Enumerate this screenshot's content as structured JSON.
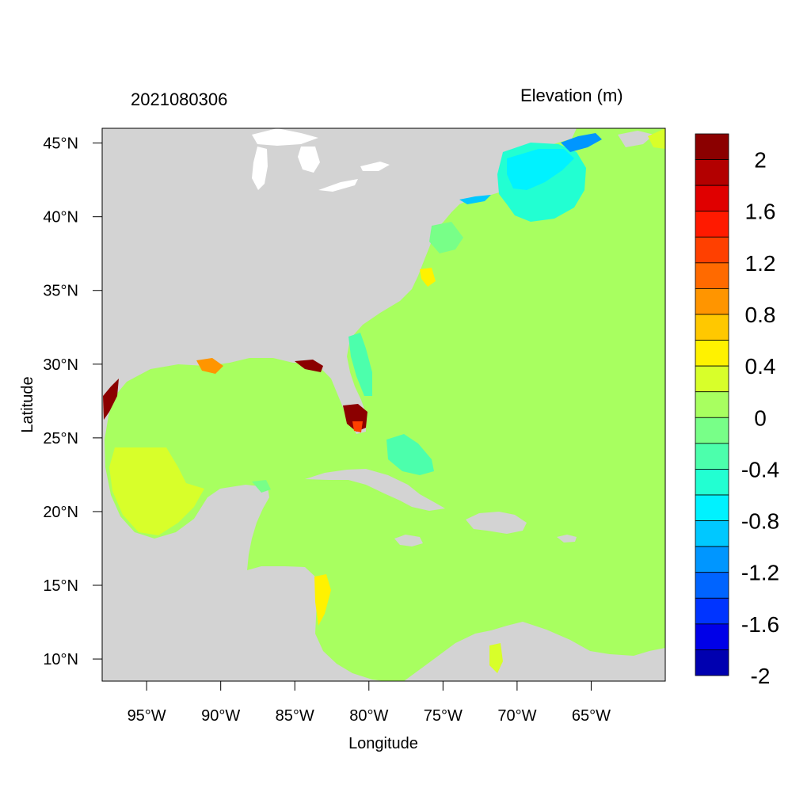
{
  "left_title": "2021080306",
  "right_title": "Elevation (m)",
  "xlabel": "Longitude",
  "ylabel": "Latitude",
  "x_ticks": [
    "95°W",
    "90°W",
    "85°W",
    "80°W",
    "75°W",
    "70°W",
    "65°W"
  ],
  "y_ticks": [
    "45°N",
    "40°N",
    "35°N",
    "30°N",
    "25°N",
    "20°N",
    "15°N",
    "10°N"
  ],
  "colorbar": {
    "labels": [
      "2",
      "1.6",
      "1.2",
      "0.8",
      "0.4",
      "0",
      "-0.4",
      "-0.8",
      "-1.2",
      "-1.6",
      "-2"
    ],
    "colors": [
      "#8b0000",
      "#b30000",
      "#e00000",
      "#ff1a00",
      "#ff4000",
      "#ff6a00",
      "#ff9500",
      "#ffc800",
      "#fff200",
      "#d8ff2a",
      "#a8ff60",
      "#78ff88",
      "#4cffac",
      "#22ffd2",
      "#00f2ff",
      "#00c8ff",
      "#0096ff",
      "#0064ff",
      "#0034ff",
      "#0000e8",
      "#0000b0"
    ]
  },
  "chart_data": {
    "type": "heatmap",
    "title": "2021080306",
    "subtitle": "Elevation (m)",
    "xlabel": "Longitude",
    "ylabel": "Latitude",
    "xlim": [
      -98,
      -60
    ],
    "ylim": [
      8.5,
      46
    ],
    "x_ticks": [
      "95°W",
      "90°W",
      "85°W",
      "80°W",
      "75°W",
      "70°W",
      "65°W"
    ],
    "y_ticks": [
      "45°N",
      "40°N",
      "35°N",
      "30°N",
      "25°N",
      "20°N",
      "15°N",
      "10°N"
    ],
    "color_levels": [
      2.2,
      2,
      1.8,
      1.6,
      1.4,
      1.2,
      1,
      0.8,
      0.6,
      0.4,
      0.2,
      0,
      -0.2,
      -0.4,
      -0.6,
      -0.8,
      -1,
      -1.2,
      -1.4,
      -1.6,
      -1.8,
      -2
    ],
    "land_color": "#d3d3d3",
    "background_value": 0
  }
}
